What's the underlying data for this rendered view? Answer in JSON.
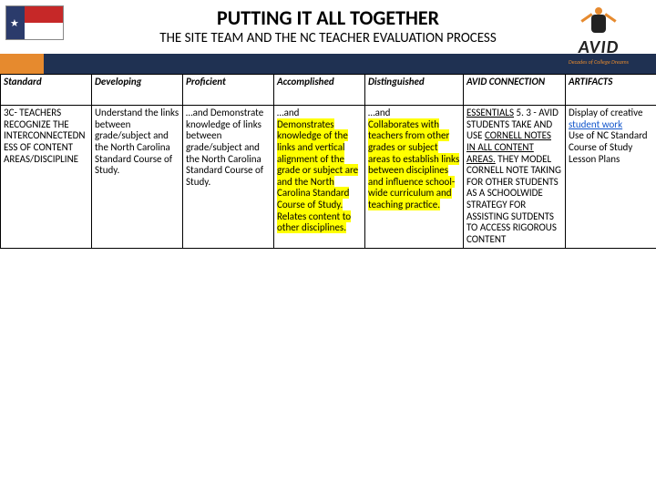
{
  "header": {
    "title": "PUTTING IT ALL TOGETHER",
    "subtitle": "THE SITE TEAM AND THE NC TEACHER EVALUATION PROCESS",
    "logo_text": "AVID",
    "logo_tagline": "Decades of College Dreams"
  },
  "columns": {
    "standard": "Standard",
    "developing": "Developing",
    "proficient": "Proficient",
    "accomplished": "Accomplished",
    "distinguished": "Distinguished",
    "connection": "AVID CONNECTION",
    "artifacts": "ARTIFACTS"
  },
  "row": {
    "standard": "3C- TEACHERS RECOGNIZE THE INTERCONNECTEDNESS OF CONTENT AREAS/DISCIPLINE",
    "developing": "Understand the links between grade/subject and the North Carolina Standard Course of Study.",
    "proficient": "…and Demonstrate knowledge of links between grade/subject and the North Carolina Standard Course of Study.",
    "accomplished_pre": "…and",
    "accomplished_h1": "Demonstrates knowledge of the links and vertical alignment of the grade or subject are and the North Carolina Standard Course of Study. Relates content to other disciplines.",
    "distinguished_pre": "…and",
    "distinguished_h1": "Collaborates with teachers from other grades or subject areas to establish links between disciplines and influence school-wide curriculum and teaching practice.",
    "connection_ess": "ESSENTIALS",
    "connection_l1": " 5. 3 - AVID STUDENTS TAKE AND USE ",
    "connection_cornell": "CORNELL NOTES",
    "connection_inall": "IN ALL CONTENT AREAS.",
    "connection_l2": " THEY MODEL CORNELL NOTE TAKING FOR OTHER STUDENTS AS A SCHOOLWIDE STRATEGY FOR ASSISTING SUTDENTS TO ACCESS RIGOROUS CONTENT",
    "artifacts_l1": "Display of creative ",
    "artifacts_student": "student work",
    "artifacts_l2": "Use of NC Standard Course of Study",
    "artifacts_l3": "Lesson Plans"
  },
  "colors": {
    "highlight": "#ffff00",
    "navy": "#1f3152",
    "orange": "#e68a2e",
    "link": "#1155cc"
  }
}
